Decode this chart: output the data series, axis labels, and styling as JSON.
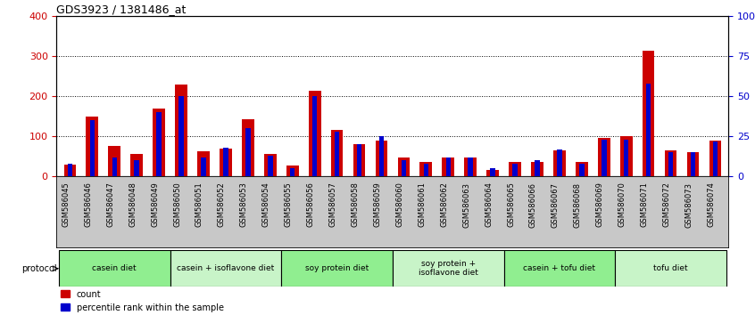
{
  "title": "GDS3923 / 1381486_at",
  "samples": [
    "GSM586045",
    "GSM586046",
    "GSM586047",
    "GSM586048",
    "GSM586049",
    "GSM586050",
    "GSM586051",
    "GSM586052",
    "GSM586053",
    "GSM586054",
    "GSM586055",
    "GSM586056",
    "GSM586057",
    "GSM586058",
    "GSM586059",
    "GSM586060",
    "GSM586061",
    "GSM586062",
    "GSM586063",
    "GSM586064",
    "GSM586065",
    "GSM586066",
    "GSM586067",
    "GSM586068",
    "GSM586069",
    "GSM586070",
    "GSM586071",
    "GSM586072",
    "GSM586073",
    "GSM586074"
  ],
  "counts": [
    30,
    148,
    75,
    55,
    168,
    228,
    62,
    70,
    143,
    55,
    27,
    213,
    115,
    80,
    90,
    48,
    35,
    48,
    47,
    17,
    35,
    35,
    65,
    35,
    95,
    100,
    313,
    65,
    60,
    90
  ],
  "percentiles": [
    8,
    35,
    12,
    10,
    40,
    50,
    12,
    18,
    30,
    13,
    5,
    50,
    28,
    20,
    25,
    10,
    8,
    12,
    12,
    5,
    8,
    10,
    17,
    8,
    23,
    23,
    58,
    15,
    15,
    22
  ],
  "groups": [
    {
      "label": "casein diet",
      "start": 0,
      "end": 5,
      "color": "#90ee90"
    },
    {
      "label": "casein + isoflavone diet",
      "start": 5,
      "end": 10,
      "color": "#c8f4c8"
    },
    {
      "label": "soy protein diet",
      "start": 10,
      "end": 15,
      "color": "#90ee90"
    },
    {
      "label": "soy protein +\nisoflavone diet",
      "start": 15,
      "end": 20,
      "color": "#c8f4c8"
    },
    {
      "label": "casein + tofu diet",
      "start": 20,
      "end": 25,
      "color": "#90ee90"
    },
    {
      "label": "tofu diet",
      "start": 25,
      "end": 30,
      "color": "#c8f4c8"
    }
  ],
  "left_ylim": [
    0,
    400
  ],
  "right_ylim": [
    0,
    100
  ],
  "left_yticks": [
    0,
    100,
    200,
    300,
    400
  ],
  "right_yticks": [
    0,
    25,
    50,
    75,
    100
  ],
  "right_yticklabels": [
    "0",
    "25",
    "50",
    "75",
    "100%"
  ],
  "count_color": "#cc0000",
  "percentile_color": "#0000cc",
  "bg_color": "#c8c8c8",
  "proto_border_color": "#000000",
  "grid_color": "#000000"
}
